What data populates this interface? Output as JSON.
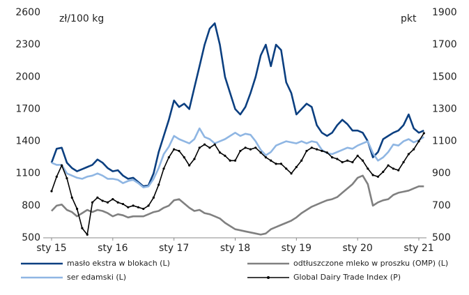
{
  "chart_data": {
    "type": "line",
    "y_unit_label": "zł/100 kg",
    "y2_unit_label": "pkt",
    "categories": [
      "sty 15",
      null,
      null,
      null,
      null,
      null,
      null,
      null,
      null,
      null,
      null,
      null,
      "sty 16",
      null,
      null,
      null,
      null,
      null,
      null,
      null,
      null,
      null,
      null,
      null,
      "sty 17",
      null,
      null,
      null,
      null,
      null,
      null,
      null,
      null,
      null,
      null,
      null,
      "sty 18",
      null,
      null,
      null,
      null,
      null,
      null,
      null,
      null,
      null,
      null,
      null,
      "sty 19",
      null,
      null,
      null,
      null,
      null,
      null,
      null,
      null,
      null,
      null,
      null,
      "sty 20",
      null,
      null,
      null,
      null,
      null,
      null,
      null,
      null,
      null,
      null,
      null,
      "sty 21",
      null
    ],
    "ylim": [
      500,
      2600
    ],
    "yticks": [
      500,
      800,
      1100,
      1400,
      1700,
      2000,
      2300,
      2600
    ],
    "y2lim": [
      500,
      1900
    ],
    "y2ticks": [
      500,
      700,
      900,
      1100,
      1300,
      1500,
      1700,
      1900
    ],
    "legend": "bottom",
    "series": [
      {
        "name": "masło ekstra w blokach (L)",
        "color": "#0b3f80",
        "values": [
          1200,
          1330,
          1340,
          1200,
          1150,
          1120,
          1140,
          1160,
          1180,
          1230,
          1200,
          1150,
          1120,
          1130,
          1080,
          1050,
          1060,
          1020,
          980,
          990,
          1100,
          1300,
          1450,
          1600,
          1780,
          1720,
          1750,
          1700,
          1900,
          2100,
          2300,
          2450,
          2500,
          2300,
          2000,
          1850,
          1700,
          1650,
          1720,
          1850,
          2000,
          2200,
          2300,
          2100,
          2300,
          2250,
          1950,
          1850,
          1650,
          1700,
          1750,
          1720,
          1550,
          1480,
          1450,
          1480,
          1550,
          1600,
          1560,
          1500,
          1500,
          1480,
          1400,
          1250,
          1300,
          1420,
          1450,
          1480,
          1500,
          1550,
          1650,
          1520,
          1480,
          1500
        ]
      },
      {
        "name": "odtłuszczone mleko w proszku (OMP) (L)",
        "color": "#808080",
        "values": [
          750,
          800,
          810,
          760,
          740,
          700,
          730,
          760,
          740,
          760,
          750,
          730,
          700,
          720,
          710,
          690,
          700,
          700,
          700,
          720,
          740,
          750,
          780,
          800,
          850,
          860,
          820,
          780,
          750,
          760,
          730,
          720,
          700,
          680,
          640,
          610,
          580,
          570,
          560,
          550,
          540,
          530,
          540,
          580,
          600,
          620,
          640,
          660,
          690,
          730,
          760,
          790,
          810,
          830,
          850,
          860,
          880,
          920,
          960,
          1000,
          1060,
          1080,
          1000,
          800,
          830,
          850,
          860,
          900,
          920,
          930,
          940,
          960,
          980,
          980
        ]
      },
      {
        "name": "ser edamski (L)",
        "color": "#8fb6e3",
        "values": [
          1200,
          1180,
          1180,
          1100,
          1080,
          1060,
          1050,
          1070,
          1080,
          1100,
          1080,
          1050,
          1050,
          1040,
          1010,
          1030,
          1040,
          1010,
          970,
          980,
          1050,
          1150,
          1280,
          1350,
          1450,
          1420,
          1400,
          1380,
          1420,
          1520,
          1440,
          1420,
          1380,
          1400,
          1420,
          1450,
          1480,
          1450,
          1470,
          1460,
          1400,
          1320,
          1270,
          1300,
          1360,
          1380,
          1400,
          1390,
          1380,
          1400,
          1380,
          1400,
          1390,
          1320,
          1290,
          1280,
          1300,
          1320,
          1340,
          1330,
          1360,
          1380,
          1400,
          1290,
          1220,
          1250,
          1300,
          1370,
          1360,
          1400,
          1420,
          1390,
          1410,
          1440
        ]
      },
      {
        "name": "Global Dairy Trade Index (P)",
        "color": "#000000",
        "axis": "y2",
        "markers": true,
        "values": [
          790,
          880,
          950,
          870,
          750,
          680,
          560,
          520,
          720,
          750,
          730,
          720,
          740,
          720,
          710,
          690,
          700,
          690,
          680,
          700,
          750,
          830,
          930,
          1000,
          1050,
          1040,
          1000,
          950,
          990,
          1060,
          1080,
          1060,
          1080,
          1030,
          1010,
          980,
          980,
          1040,
          1060,
          1050,
          1060,
          1030,
          1000,
          980,
          960,
          960,
          930,
          900,
          940,
          980,
          1040,
          1060,
          1050,
          1040,
          1030,
          1000,
          990,
          970,
          980,
          970,
          1010,
          980,
          930,
          890,
          880,
          910,
          950,
          930,
          920,
          970,
          1020,
          1050,
          1100,
          1150
        ]
      }
    ]
  }
}
